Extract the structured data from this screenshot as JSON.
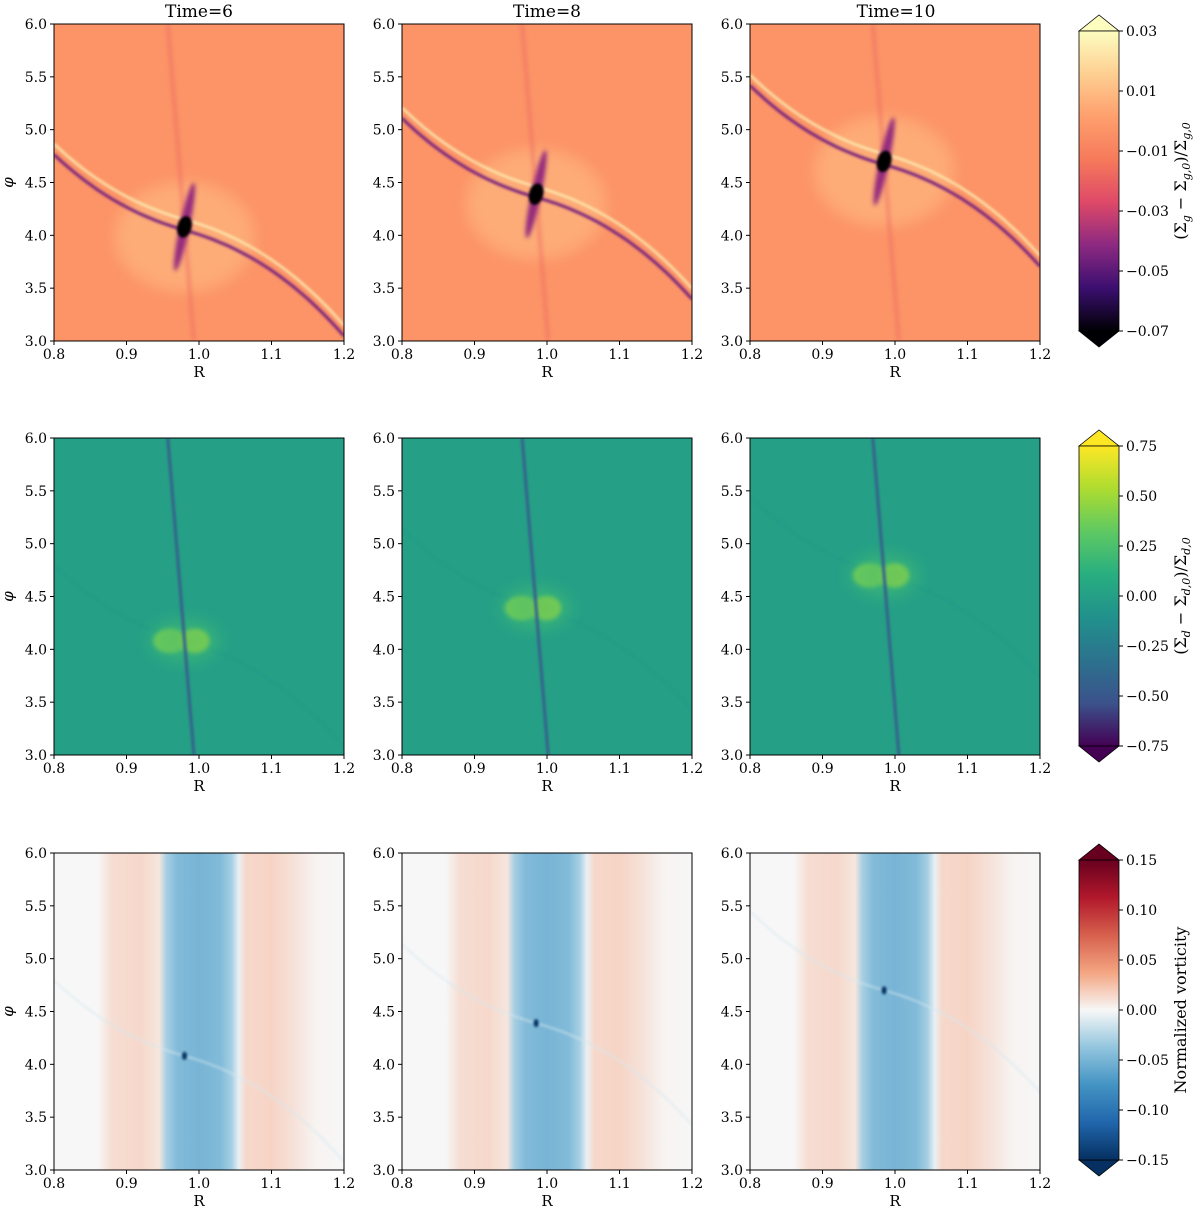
{
  "chart_data": {
    "type": "heatmap",
    "column_titles": [
      "Time=6",
      "Time=8",
      "Time=10"
    ],
    "xlabel": "R",
    "ylabel": "φ",
    "xlim": [
      0.8,
      1.2
    ],
    "ylim": [
      3.0,
      6.0
    ],
    "x_ticks": [
      "0.8",
      "0.9",
      "1.0",
      "1.1",
      "1.2"
    ],
    "y_ticks": [
      "3.0",
      "3.5",
      "4.0",
      "4.5",
      "5.0",
      "5.5",
      "6.0"
    ],
    "planet_phi": [
      4.08,
      4.39,
      4.7
    ],
    "planet_R": [
      0.98,
      0.985,
      0.985
    ],
    "rows": [
      {
        "quantity": "gas_surface_density_perturbation",
        "colormap": "magma",
        "colorbar_label": "(Σg − Σg,0)/Σg,0",
        "colorbar_label_parts": [
          "(Σ",
          "g",
          " − Σ",
          "g,0",
          ")/Σ",
          "g,0"
        ],
        "colorbar_range": [
          -0.07,
          0.03
        ],
        "colorbar_ticks": [
          "0.03",
          "0.01",
          "−0.01",
          "−0.03",
          "−0.05",
          "−0.07"
        ],
        "colors": [
          "#000004",
          "#3b0f70",
          "#8c2981",
          "#de4968",
          "#f67a5b",
          "#fe9f6d",
          "#fecf92",
          "#fcfdbf"
        ]
      },
      {
        "quantity": "dust_surface_density_perturbation",
        "colormap": "viridis",
        "colorbar_label": "(Σd − Σd,0)/Σd,0",
        "colorbar_label_parts": [
          "(Σ",
          "d",
          " − Σ",
          "d,0",
          ")/Σ",
          "d,0"
        ],
        "colorbar_range": [
          -0.75,
          0.75
        ],
        "colorbar_ticks": [
          "0.75",
          "0.50",
          "0.25",
          "0.00",
          "−0.25",
          "−0.50",
          "−0.75"
        ],
        "colors": [
          "#440154",
          "#3b528b",
          "#2c728e",
          "#21918c",
          "#28ae80",
          "#5ec962",
          "#addc30",
          "#fde725"
        ]
      },
      {
        "quantity": "normalized_vorticity",
        "colormap": "RdBu_r",
        "colorbar_label": "Normalized vorticity",
        "colorbar_range": [
          -0.15,
          0.15
        ],
        "colorbar_ticks": [
          "0.15",
          "0.10",
          "0.05",
          "0.00",
          "−0.05",
          "−0.10",
          "−0.15"
        ],
        "colors": [
          "#053061",
          "#2166ac",
          "#4393c3",
          "#92c5de",
          "#f7f7f7",
          "#f4a582",
          "#d6604d",
          "#b2182b",
          "#67001f"
        ]
      }
    ]
  }
}
